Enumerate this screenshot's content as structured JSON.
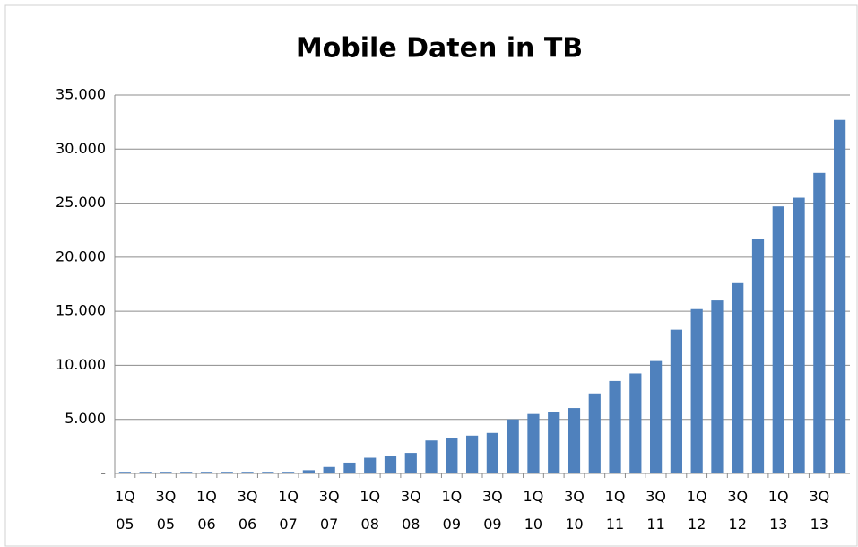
{
  "chart_data": {
    "type": "bar",
    "title": "Mobile Daten in TB",
    "categories": [
      "1Q\n05",
      null,
      "3Q\n05",
      null,
      "1Q\n06",
      null,
      "3Q\n06",
      null,
      "1Q\n07",
      null,
      "3Q\n07",
      null,
      "1Q\n08",
      null,
      "3Q\n08",
      null,
      "1Q\n09",
      null,
      "3Q\n09",
      null,
      "1Q\n10",
      null,
      "3Q\n10",
      null,
      "1Q\n11",
      null,
      "3Q\n11",
      null,
      "1Q\n12",
      null,
      "3Q\n12",
      null,
      "1Q\n13",
      null,
      "3Q\n13",
      null
    ],
    "values": [
      150,
      150,
      150,
      150,
      150,
      150,
      150,
      150,
      150,
      300,
      600,
      1000,
      1450,
      1600,
      1900,
      3050,
      3300,
      3500,
      3750,
      5000,
      5500,
      5650,
      6050,
      7400,
      8550,
      9250,
      10400,
      13300,
      15200,
      16000,
      17600,
      21700,
      24700,
      25500,
      27800,
      32700
    ],
    "color": "#4f81bd",
    "ylim": [
      0,
      35000
    ],
    "yticks": [
      {
        "value": 0,
        "label": "-"
      },
      {
        "value": 5000,
        "label": "5.000"
      },
      {
        "value": 10000,
        "label": "10.000"
      },
      {
        "value": 15000,
        "label": "15.000"
      },
      {
        "value": 20000,
        "label": "20.000"
      },
      {
        "value": 25000,
        "label": "25.000"
      },
      {
        "value": 30000,
        "label": "30.000"
      },
      {
        "value": 35000,
        "label": "35.000"
      }
    ],
    "grid": true
  }
}
